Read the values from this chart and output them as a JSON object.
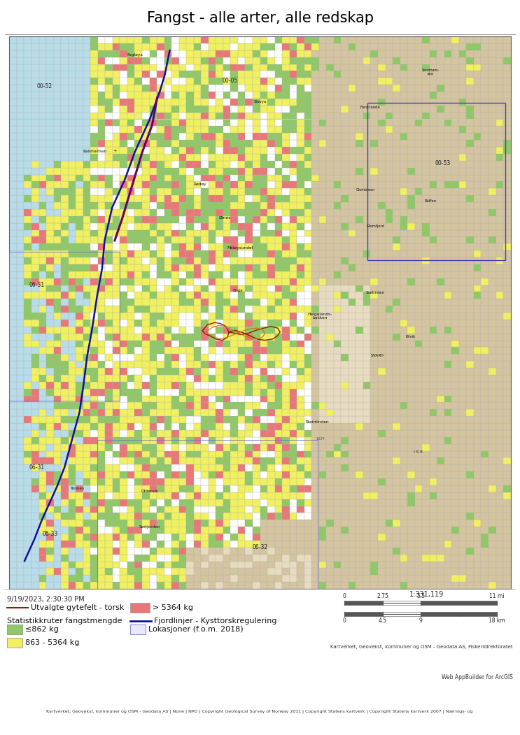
{
  "title": "Fangst - alle arter, alle redskap",
  "title_fontsize": 15,
  "bg_color": "#ffffff",
  "timestamp": "9/19/2023, 2:30:30 PM",
  "scale_ratio": "1:331,119",
  "attribution": "Kartverket, Geovekst, kommuner og OSM - Geodata AS, Fiskeridirektoratet",
  "footer_line1": "Web AppBuilder for ArcGIS",
  "footer_line2": "Kartverket, Geovekst, kommuner og OSM - Geodata AS | None | NPD | Copyright Geological Survey of Norway 2011 | Copyright Statens kartverk | Copyright Statens kartverk 2007 | Nærings- og",
  "sea_color": "#b8dce8",
  "topo_color": "#d4c4a0",
  "topo_light": "#e8dcc0",
  "green_color": "#90c868",
  "yellow_color": "#f0f060",
  "red_color": "#e87878",
  "white_color": "#ffffff",
  "grid_edge": "#b0b0b0",
  "gytefelt_color": "#8B2000",
  "fjord_line_color": "#1010a0",
  "border_color": "#606060",
  "inset_border": "#4444aa",
  "legend_line_color": "#555555"
}
